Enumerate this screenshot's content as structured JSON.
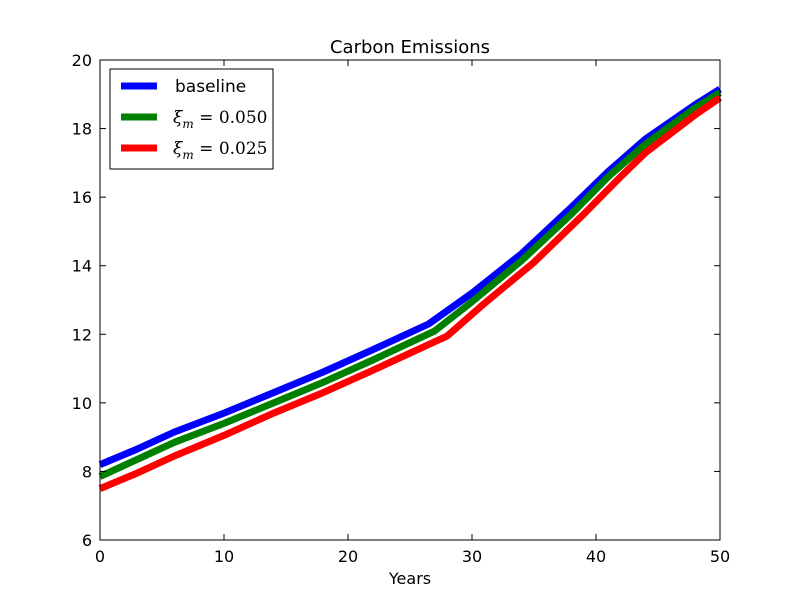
{
  "chart_data": {
    "type": "line",
    "title": "Carbon Emissions",
    "xlabel": "Years",
    "ylabel": "",
    "xlim": [
      0,
      50
    ],
    "ylim": [
      6,
      20
    ],
    "xticks": [
      "0",
      "10",
      "20",
      "30",
      "40",
      "50"
    ],
    "yticks": [
      "6",
      "8",
      "10",
      "12",
      "14",
      "16",
      "18",
      "20"
    ],
    "grid": false,
    "legend_placement": "upper-left",
    "series": [
      {
        "name": "baseline",
        "color": "#0000ff",
        "x": [
          0,
          3,
          6,
          10,
          14,
          18,
          22,
          26.5,
          30,
          34,
          38,
          41,
          44,
          48,
          50
        ],
        "y": [
          8.2,
          8.65,
          9.15,
          9.7,
          10.3,
          10.9,
          11.55,
          12.3,
          13.2,
          14.35,
          15.7,
          16.75,
          17.7,
          18.7,
          19.15
        ]
      },
      {
        "name": "ξ_m = 0.050",
        "label_parts": {
          "symbol": "ξ",
          "sub": "m",
          "value": " = 0.050"
        },
        "color": "#008000",
        "x": [
          0,
          3,
          6,
          10,
          14,
          18,
          22,
          27,
          30,
          34,
          38,
          41,
          44,
          48,
          50
        ],
        "y": [
          7.85,
          8.35,
          8.85,
          9.4,
          10.0,
          10.6,
          11.25,
          12.1,
          12.95,
          14.15,
          15.5,
          16.6,
          17.55,
          18.6,
          19.05
        ]
      },
      {
        "name": "ξ_m = 0.025",
        "label_parts": {
          "symbol": "ξ",
          "sub": "m",
          "value": " = 0.025"
        },
        "color": "#ff0000",
        "x": [
          0,
          3,
          6,
          10,
          14,
          18,
          22,
          28,
          31,
          35,
          39,
          42,
          44,
          48,
          50
        ],
        "y": [
          7.5,
          7.95,
          8.45,
          9.05,
          9.7,
          10.3,
          10.95,
          11.95,
          12.9,
          14.1,
          15.5,
          16.6,
          17.3,
          18.4,
          18.9
        ]
      }
    ]
  }
}
